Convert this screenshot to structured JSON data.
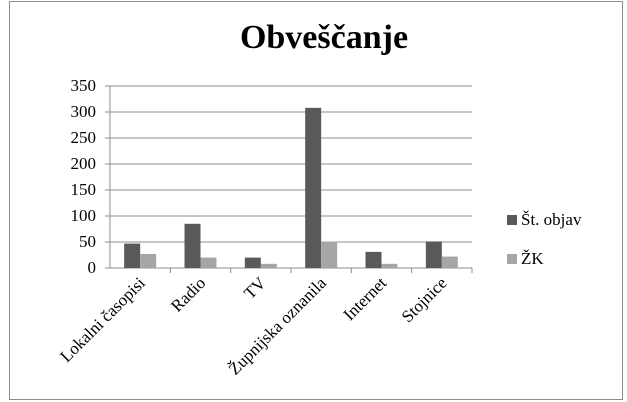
{
  "chart_data": {
    "type": "bar",
    "title": "Obveščanje",
    "categories": [
      "Lokalni časopisi",
      "Radio",
      "TV",
      "Župnijska oznanila",
      "Internet",
      "Stojnice"
    ],
    "series": [
      {
        "name": "Št. objav",
        "values": [
          47,
          85,
          20,
          308,
          31,
          51
        ],
        "color": "#595959"
      },
      {
        "name": "ŽK",
        "values": [
          27,
          20,
          8,
          51,
          8,
          22
        ],
        "color": "#a6a6a6"
      }
    ],
    "ylim": [
      0,
      350
    ],
    "yticks": [
      "0",
      "50",
      "100",
      "150",
      "200",
      "250",
      "300",
      "350"
    ],
    "grid": true,
    "legend_position": "right",
    "xlabel": "",
    "ylabel": ""
  }
}
